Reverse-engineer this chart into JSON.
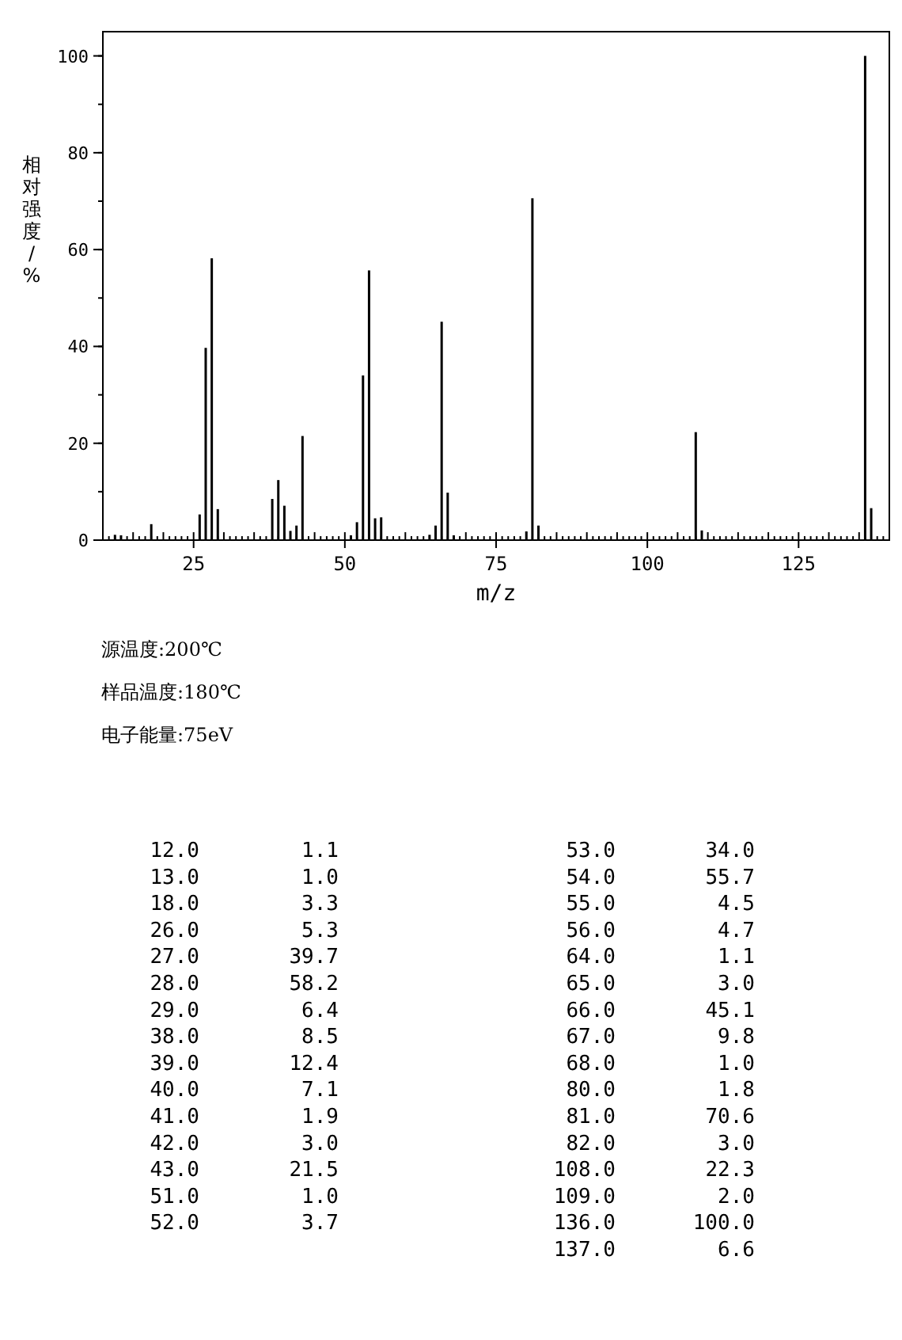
{
  "chart_data": {
    "type": "bar",
    "xlabel": "m/z",
    "ylabel": "相对强度/%",
    "x": [
      12,
      13,
      18,
      26,
      27,
      28,
      29,
      38,
      39,
      40,
      41,
      42,
      43,
      51,
      52,
      53,
      54,
      55,
      56,
      64,
      65,
      66,
      67,
      68,
      80,
      81,
      82,
      108,
      109,
      136,
      137
    ],
    "values": [
      1.1,
      1.0,
      3.3,
      5.3,
      39.7,
      58.2,
      6.4,
      8.5,
      12.4,
      7.1,
      1.9,
      3.0,
      21.5,
      1.0,
      3.7,
      34.0,
      55.7,
      4.5,
      4.7,
      1.1,
      3.0,
      45.1,
      9.8,
      1.0,
      1.8,
      70.6,
      3.0,
      22.3,
      2.0,
      100.0,
      6.6
    ],
    "color": "#000000",
    "xlim": [
      10,
      140
    ],
    "xticks": [
      25,
      50,
      75,
      100,
      125
    ],
    "ylim": [
      0,
      105
    ],
    "yticks": [
      0,
      20,
      40,
      60,
      80,
      100
    ],
    "grid": false,
    "annotations": [
      "源温度:200℃",
      "样品温度:180℃",
      "电子能量:75eV",
      "12.0",
      "1.1",
      "13.0",
      "1.0",
      "18.0",
      "3.3",
      "26.0",
      "5.3",
      "27.0",
      "39.7",
      "28.0",
      "58.2",
      "29.0",
      "6.4",
      "38.0",
      "8.5",
      "39.0",
      "12.4",
      "40.0",
      "7.1",
      "41.0",
      "1.9",
      "42.0",
      "3.0",
      "43.0",
      "21.5",
      "51.0",
      "1.0",
      "52.0",
      "3.7",
      "53.0",
      "34.0",
      "54.0",
      "55.7",
      "55.0",
      "4.5",
      "56.0",
      "4.7",
      "64.0",
      "1.1",
      "65.0",
      "3.0",
      "66.0",
      "45.1",
      "67.0",
      "9.8",
      "68.0",
      "1.0",
      "80.0",
      "1.8",
      "81.0",
      "70.6",
      "82.0",
      "3.0",
      "108.0",
      "22.3",
      "109.0",
      "2.0",
      "136.0",
      "100.0",
      "137.0",
      "6.6"
    ]
  }
}
